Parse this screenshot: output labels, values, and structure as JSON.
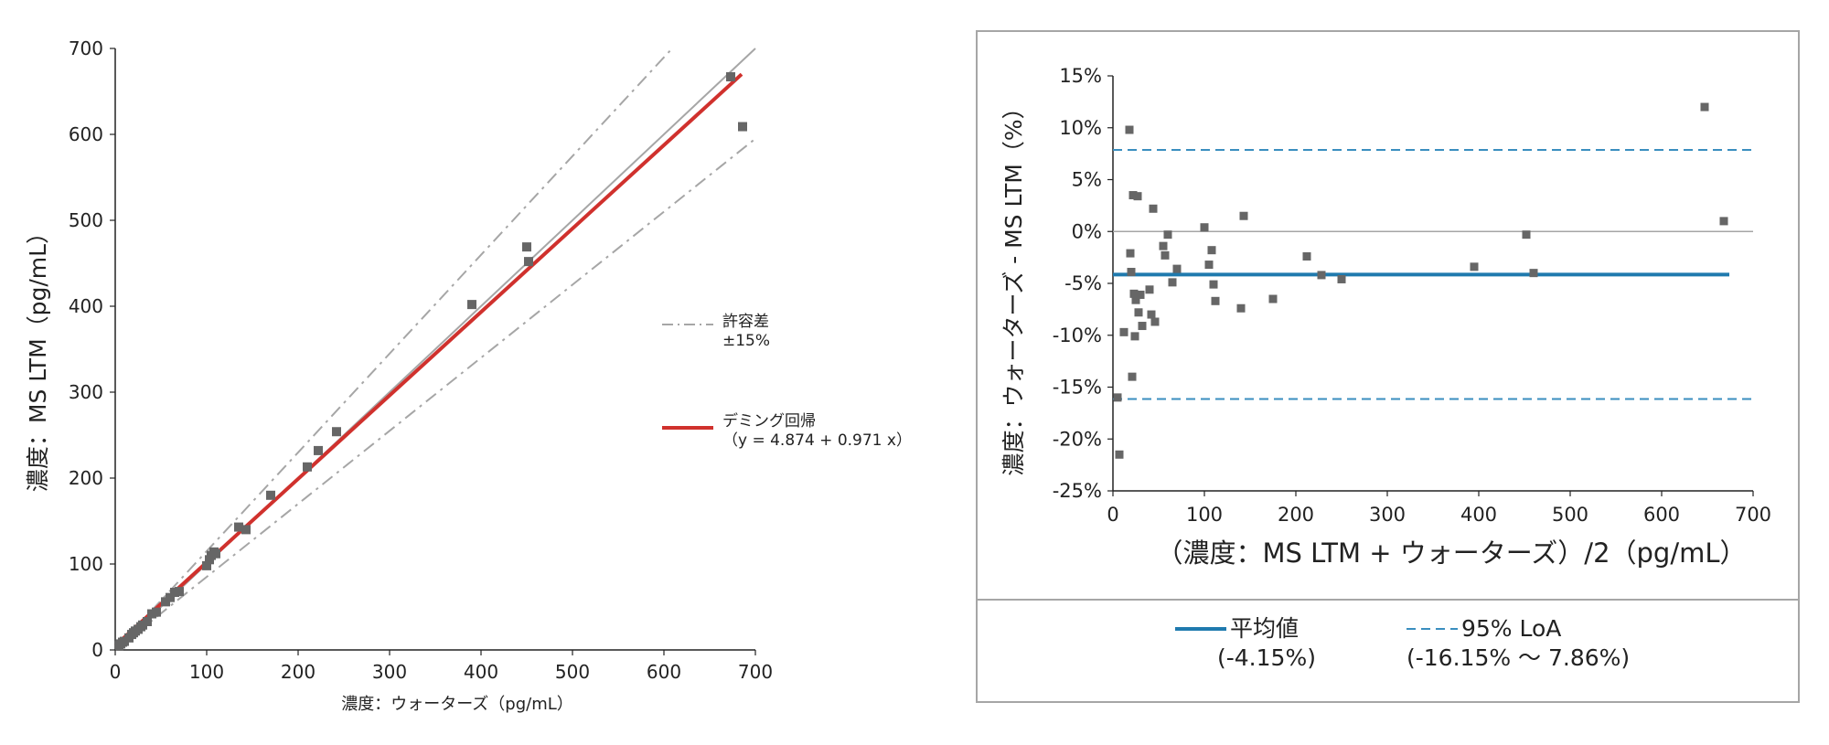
{
  "chart_data": [
    {
      "type": "scatter",
      "title": "",
      "xlabel": "濃度：ウォーターズ（pg/mL）",
      "ylabel": "濃度：MS LTM（pg/mL）",
      "xlim": [
        0,
        700
      ],
      "ylim": [
        0,
        700
      ],
      "xticks": [
        "0",
        "100",
        "200",
        "300",
        "400",
        "500",
        "600",
        "700"
      ],
      "yticks": [
        "0",
        "100",
        "200",
        "300",
        "400",
        "500",
        "600",
        "700"
      ],
      "legend": [
        {
          "label_line1": "許容差",
          "label_line2": "±15%",
          "style": "dash-dot",
          "color": "#a6a6a6"
        },
        {
          "label_line1": "デミング回帰",
          "label_line2": "（y = 4.874 + 0.971 x）",
          "style": "solid",
          "color": "#d0312d"
        }
      ],
      "points": [
        [
          4,
          5
        ],
        [
          6,
          7
        ],
        [
          8,
          9
        ],
        [
          10,
          10
        ],
        [
          15,
          14
        ],
        [
          18,
          18
        ],
        [
          20,
          20
        ],
        [
          22,
          22
        ],
        [
          25,
          24
        ],
        [
          28,
          27
        ],
        [
          30,
          29
        ],
        [
          35,
          33
        ],
        [
          40,
          42
        ],
        [
          45,
          44
        ],
        [
          55,
          56
        ],
        [
          60,
          61
        ],
        [
          65,
          67
        ],
        [
          70,
          68
        ],
        [
          100,
          98
        ],
        [
          103,
          105
        ],
        [
          105,
          110
        ],
        [
          108,
          114
        ],
        [
          110,
          112
        ],
        [
          135,
          143
        ],
        [
          143,
          140
        ],
        [
          170,
          180
        ],
        [
          210,
          213
        ],
        [
          222,
          232
        ],
        [
          242,
          254
        ],
        [
          390,
          402
        ],
        [
          450,
          469
        ],
        [
          452,
          452
        ],
        [
          673,
          667
        ],
        [
          686,
          609
        ]
      ],
      "identity_line": {
        "from": [
          0,
          0
        ],
        "to": [
          700,
          700
        ],
        "color": "#a6a6a6"
      },
      "tolerance_upper": {
        "from": [
          0,
          0
        ],
        "to": [
          609,
          700
        ],
        "color": "#a6a6a6"
      },
      "tolerance_lower": {
        "from": [
          0,
          0
        ],
        "to": [
          700,
          595
        ],
        "color": "#a6a6a6"
      },
      "regression": {
        "intercept": 4.874,
        "slope": 0.971,
        "x_from": 0,
        "x_to": 685,
        "color": "#d0312d"
      },
      "point_color": "#666666"
    },
    {
      "type": "scatter",
      "title": "",
      "xlabel": "（濃度：MS LTM + ウォーターズ）/2（pg/mL）",
      "ylabel": "濃度：ウォーターズ - MS LTM（%）",
      "xlim": [
        0,
        700
      ],
      "ylim": [
        -25,
        15
      ],
      "xticks": [
        "0",
        "100",
        "200",
        "300",
        "400",
        "500",
        "600",
        "700"
      ],
      "yticks": [
        "-25%",
        "-20%",
        "-15%",
        "-10%",
        "-5%",
        "0%",
        "5%",
        "10%",
        "15%"
      ],
      "points": [
        [
          5,
          -16
        ],
        [
          7,
          -21.5
        ],
        [
          12,
          -9.7
        ],
        [
          18,
          9.8
        ],
        [
          19,
          -2.1
        ],
        [
          20,
          -3.9
        ],
        [
          21,
          -14
        ],
        [
          22,
          3.5
        ],
        [
          23,
          -6
        ],
        [
          24,
          -10.1
        ],
        [
          25,
          -6.6
        ],
        [
          27,
          3.4
        ],
        [
          28,
          -7.8
        ],
        [
          30,
          -6.1
        ],
        [
          32,
          -9.1
        ],
        [
          40,
          -5.6
        ],
        [
          42,
          -8
        ],
        [
          44,
          2.2
        ],
        [
          46,
          -8.7
        ],
        [
          55,
          -1.4
        ],
        [
          57,
          -2.3
        ],
        [
          60,
          -0.3
        ],
        [
          65,
          -4.9
        ],
        [
          70,
          -3.6
        ],
        [
          100,
          0.4
        ],
        [
          105,
          -3.2
        ],
        [
          108,
          -1.8
        ],
        [
          110,
          -5.1
        ],
        [
          112,
          -6.7
        ],
        [
          140,
          -7.4
        ],
        [
          143,
          1.5
        ],
        [
          175,
          -6.5
        ],
        [
          212,
          -2.4
        ],
        [
          228,
          -4.2
        ],
        [
          250,
          -4.6
        ],
        [
          395,
          -3.4
        ],
        [
          452,
          -0.3
        ],
        [
          460,
          -4
        ],
        [
          647,
          12
        ],
        [
          668,
          1
        ]
      ],
      "mean": {
        "value": -4.15,
        "color": "#1f7aae"
      },
      "loa": {
        "lower": -16.15,
        "upper": 7.86,
        "color": "#3a8ebf"
      },
      "zero_line_color": "#a6a6a6",
      "point_color": "#666666",
      "legend": [
        {
          "label_line1": "平均値",
          "label_line2": "(-4.15%)",
          "style": "solid",
          "color": "#1f7aae"
        },
        {
          "label_line1": "95% LoA",
          "label_line2": "(-16.15% 〜 7.86%)",
          "style": "dashed",
          "color": "#3a8ebf"
        }
      ]
    }
  ]
}
